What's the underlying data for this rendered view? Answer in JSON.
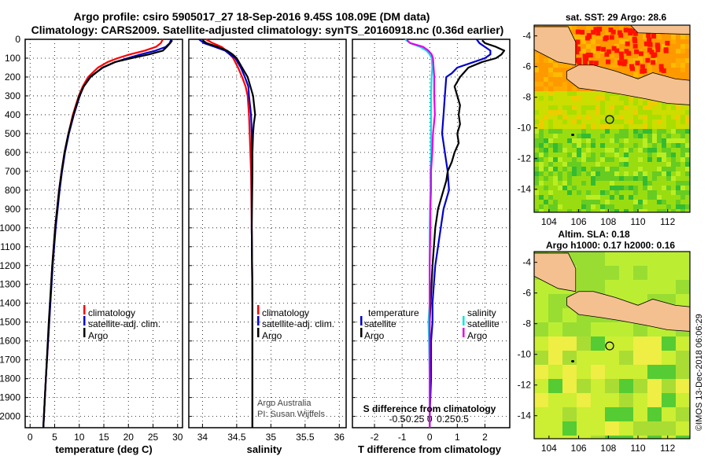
{
  "header": {
    "line1": "Argo profile: csiro 5905017_27 18-Sep-2016 9.45S 108.09E (DM data)",
    "line2": "Climatology: CARS2009. Satellite-adjusted climatology: synTS_20160918.nc (0.36d earlier)"
  },
  "colors": {
    "climatology": "#ff0000",
    "satellite": "#0000cc",
    "argo": "#000000",
    "sat_salinity": "#00e5e5",
    "argo_salinity": "#e600e6",
    "land": "#f5c08f"
  },
  "depth_axis": {
    "ylim": [
      0,
      2060
    ],
    "ticks": [
      0,
      100,
      200,
      300,
      400,
      500,
      600,
      700,
      800,
      900,
      1000,
      1100,
      1200,
      1300,
      1400,
      1500,
      1600,
      1700,
      1800,
      1900,
      2000
    ]
  },
  "chart_data": [
    {
      "id": "temperature",
      "type": "line",
      "xlabel": "temperature (deg C)",
      "xlim": [
        -1,
        31
      ],
      "xticks": [
        0,
        5,
        10,
        15,
        20,
        25,
        30
      ],
      "legend": [
        "climatology",
        "satellite-adj. clim.",
        "Argo"
      ],
      "series": [
        {
          "name": "climatology",
          "color_key": "climatology",
          "depth": [
            0,
            20,
            40,
            60,
            80,
            100,
            120,
            150,
            180,
            200,
            250,
            300,
            400,
            500,
            600,
            700,
            800,
            1000,
            1200,
            1500,
            1800,
            2000,
            2060
          ],
          "values": [
            27.0,
            26.6,
            25.6,
            23.3,
            20.3,
            17.8,
            15.8,
            13.8,
            12.6,
            11.8,
            10.7,
            9.9,
            8.7,
            7.8,
            7.0,
            6.4,
            5.9,
            5.1,
            4.5,
            3.9,
            3.2,
            2.8,
            2.7
          ]
        },
        {
          "name": "satellite-adj. clim.",
          "color_key": "satellite",
          "depth": [
            0,
            20,
            40,
            60,
            80,
            100,
            120,
            150,
            180,
            200,
            250,
            300,
            400,
            500,
            600,
            700,
            800,
            1000,
            1200,
            1500,
            1800,
            2000,
            2060
          ],
          "values": [
            28.7,
            28.4,
            27.6,
            25.5,
            22.5,
            19.8,
            17.4,
            14.8,
            13.2,
            12.2,
            10.9,
            10.1,
            8.9,
            7.9,
            7.1,
            6.5,
            6.0,
            5.2,
            4.6,
            3.9,
            3.2,
            2.8,
            2.7
          ]
        },
        {
          "name": "Argo",
          "color_key": "argo",
          "depth": [
            5,
            20,
            40,
            60,
            80,
            100,
            120,
            150,
            200,
            250,
            300,
            400,
            500,
            600,
            700,
            800,
            1000,
            1200,
            1500,
            1800,
            2000,
            2060
          ],
          "values": [
            28.9,
            28.5,
            27.8,
            27.0,
            24.2,
            20.6,
            17.3,
            14.7,
            12.3,
            10.9,
            10.0,
            8.8,
            7.8,
            7.0,
            6.4,
            5.9,
            5.1,
            4.5,
            3.8,
            3.2,
            2.8,
            2.7
          ]
        }
      ]
    },
    {
      "id": "salinity",
      "type": "line",
      "xlabel": "salinity",
      "xlim": [
        33.8,
        36.1
      ],
      "xticks": [
        34,
        34.5,
        35,
        35.5,
        36
      ],
      "legend": [
        "climatology",
        "satellite-adj. clim.",
        "Argo"
      ],
      "credits": [
        "Argo Australia",
        "PI: Susan Wijffels"
      ],
      "series": [
        {
          "name": "climatology",
          "color_key": "climatology",
          "depth": [
            0,
            20,
            40,
            60,
            80,
            100,
            150,
            200,
            250,
            300,
            400,
            500,
            700,
            1000,
            1400,
            1800,
            2060
          ],
          "values": [
            34.05,
            34.15,
            34.28,
            34.35,
            34.4,
            34.45,
            34.52,
            34.58,
            34.63,
            34.66,
            34.68,
            34.69,
            34.71,
            34.72,
            34.73,
            34.73,
            34.73
          ]
        },
        {
          "name": "satellite-adj. clim.",
          "color_key": "satellite",
          "depth": [
            0,
            20,
            40,
            60,
            80,
            100,
            150,
            200,
            250,
            300,
            400,
            500,
            700,
            1000,
            1400,
            1800,
            2060
          ],
          "values": [
            33.95,
            34.02,
            34.18,
            34.33,
            34.4,
            34.48,
            34.56,
            34.62,
            34.67,
            34.68,
            34.71,
            34.72,
            34.72,
            34.72,
            34.73,
            34.73,
            34.73
          ]
        },
        {
          "name": "Argo",
          "color_key": "argo",
          "depth": [
            5,
            20,
            40,
            60,
            80,
            100,
            150,
            200,
            250,
            300,
            400,
            450,
            500,
            600,
            700,
            1000,
            1400,
            1800,
            2060
          ],
          "values": [
            34.0,
            34.06,
            34.22,
            34.36,
            34.44,
            34.5,
            34.58,
            34.66,
            34.7,
            34.74,
            34.77,
            34.75,
            34.74,
            34.73,
            34.73,
            34.72,
            34.73,
            34.73,
            34.73
          ]
        }
      ]
    },
    {
      "id": "differences",
      "type": "line",
      "xlabel": "T difference from climatology",
      "xlabel_top": "S difference from climatology",
      "xlim": [
        -2.8,
        2.9
      ],
      "xticks": [
        -2,
        -1,
        0,
        1,
        2
      ],
      "sticks": [
        -0.5,
        -0.25,
        0,
        0.25,
        0.5
      ],
      "sticks_labels": [
        "-0.5",
        "-0.25",
        "0",
        "0.25",
        "0.5"
      ],
      "legend_temperature_title": "temperature",
      "legend_salinity_title": "salinity",
      "legend_temperature": [
        "satellite",
        "Argo"
      ],
      "legend_salinity": [
        "satellite",
        "Argo"
      ],
      "series": [
        {
          "name": "T satellite",
          "color_key": "satellite",
          "depth": [
            0,
            20,
            40,
            60,
            80,
            100,
            120,
            150,
            180,
            200,
            300,
            400,
            500,
            600,
            700,
            800,
            900,
            1000,
            1100,
            1200,
            1300,
            1400,
            1500,
            1600,
            1800,
            2000,
            2060
          ],
          "values": [
            1.7,
            1.8,
            2.0,
            2.2,
            2.2,
            2.0,
            1.6,
            1.0,
            0.8,
            0.6,
            0.55,
            0.5,
            0.45,
            0.55,
            0.65,
            0.7,
            0.5,
            0.4,
            0.3,
            0.2,
            0.15,
            0.1,
            0.1,
            0.05,
            0.05,
            0.0,
            0.0
          ]
        },
        {
          "name": "T Argo",
          "color_key": "argo",
          "depth": [
            5,
            20,
            40,
            60,
            80,
            100,
            120,
            150,
            200,
            250,
            300,
            350,
            400,
            450,
            500,
            550,
            600,
            650,
            700,
            750,
            800,
            850,
            900,
            1000,
            1200,
            1500,
            1800,
            2060
          ],
          "values": [
            1.9,
            2.0,
            2.4,
            2.7,
            2.6,
            2.4,
            1.9,
            1.4,
            1.1,
            0.9,
            1.0,
            1.1,
            1.05,
            1.1,
            1.0,
            1.05,
            0.9,
            0.8,
            0.65,
            0.6,
            0.5,
            0.4,
            0.3,
            0.2,
            0.1,
            0.0,
            0.0,
            0.0
          ]
        },
        {
          "name": "S satellite",
          "color_key": "sat_salinity",
          "depth": [
            0,
            20,
            40,
            60,
            80,
            100,
            150,
            200,
            300,
            400,
            500,
            600,
            700,
            800,
            1000,
            1200,
            1400,
            1500,
            1600,
            1800,
            2060
          ],
          "values": [
            -0.38,
            -0.3,
            -0.15,
            -0.05,
            0.0,
            0.03,
            0.04,
            0.03,
            0.02,
            0.02,
            0.02,
            0.02,
            0.01,
            0.01,
            0.0,
            0.0,
            0.0,
            -0.02,
            -0.01,
            0.0,
            0.0
          ]
        },
        {
          "name": "S Argo",
          "color_key": "argo_salinity",
          "depth": [
            5,
            20,
            40,
            60,
            80,
            100,
            150,
            200,
            300,
            400,
            500,
            600,
            700,
            800,
            900,
            1000,
            1200,
            1400,
            1800,
            2060
          ],
          "values": [
            -0.35,
            -0.3,
            -0.1,
            -0.02,
            0.03,
            0.05,
            0.06,
            0.07,
            0.07,
            0.08,
            0.05,
            0.04,
            0.02,
            0.02,
            0.01,
            0.01,
            0.0,
            0.0,
            0.0,
            0.0
          ]
        }
      ]
    }
  ],
  "maps": {
    "sst": {
      "title": "sat. SST: 29 Argo: 28.6",
      "xticks": [
        "104",
        "106",
        "108",
        "110",
        "112"
      ],
      "yticks": [
        "-4",
        "-6",
        "-8",
        "-10",
        "-12",
        "-14"
      ],
      "lon_range": [
        103,
        113.5
      ],
      "lat_range": [
        -15.5,
        -3.3
      ],
      "argo_lon": 108.09,
      "argo_lat": -9.45
    },
    "sla": {
      "title1": "Altim. SLA: 0.18",
      "title2": "Argo h1000: 0.17 h2000: 0.16",
      "xticks": [
        "104",
        "106",
        "108",
        "110",
        "112"
      ],
      "yticks": [
        "-4",
        "-6",
        "-8",
        "-10",
        "-12",
        "-14"
      ],
      "lon_range": [
        103,
        113.5
      ],
      "lat_range": [
        -15.5,
        -3.3
      ],
      "argo_lon": 108.09,
      "argo_lat": -9.45
    }
  },
  "footer": {
    "credit": "©IMOS 13-Dec-2018 06:06:29"
  }
}
